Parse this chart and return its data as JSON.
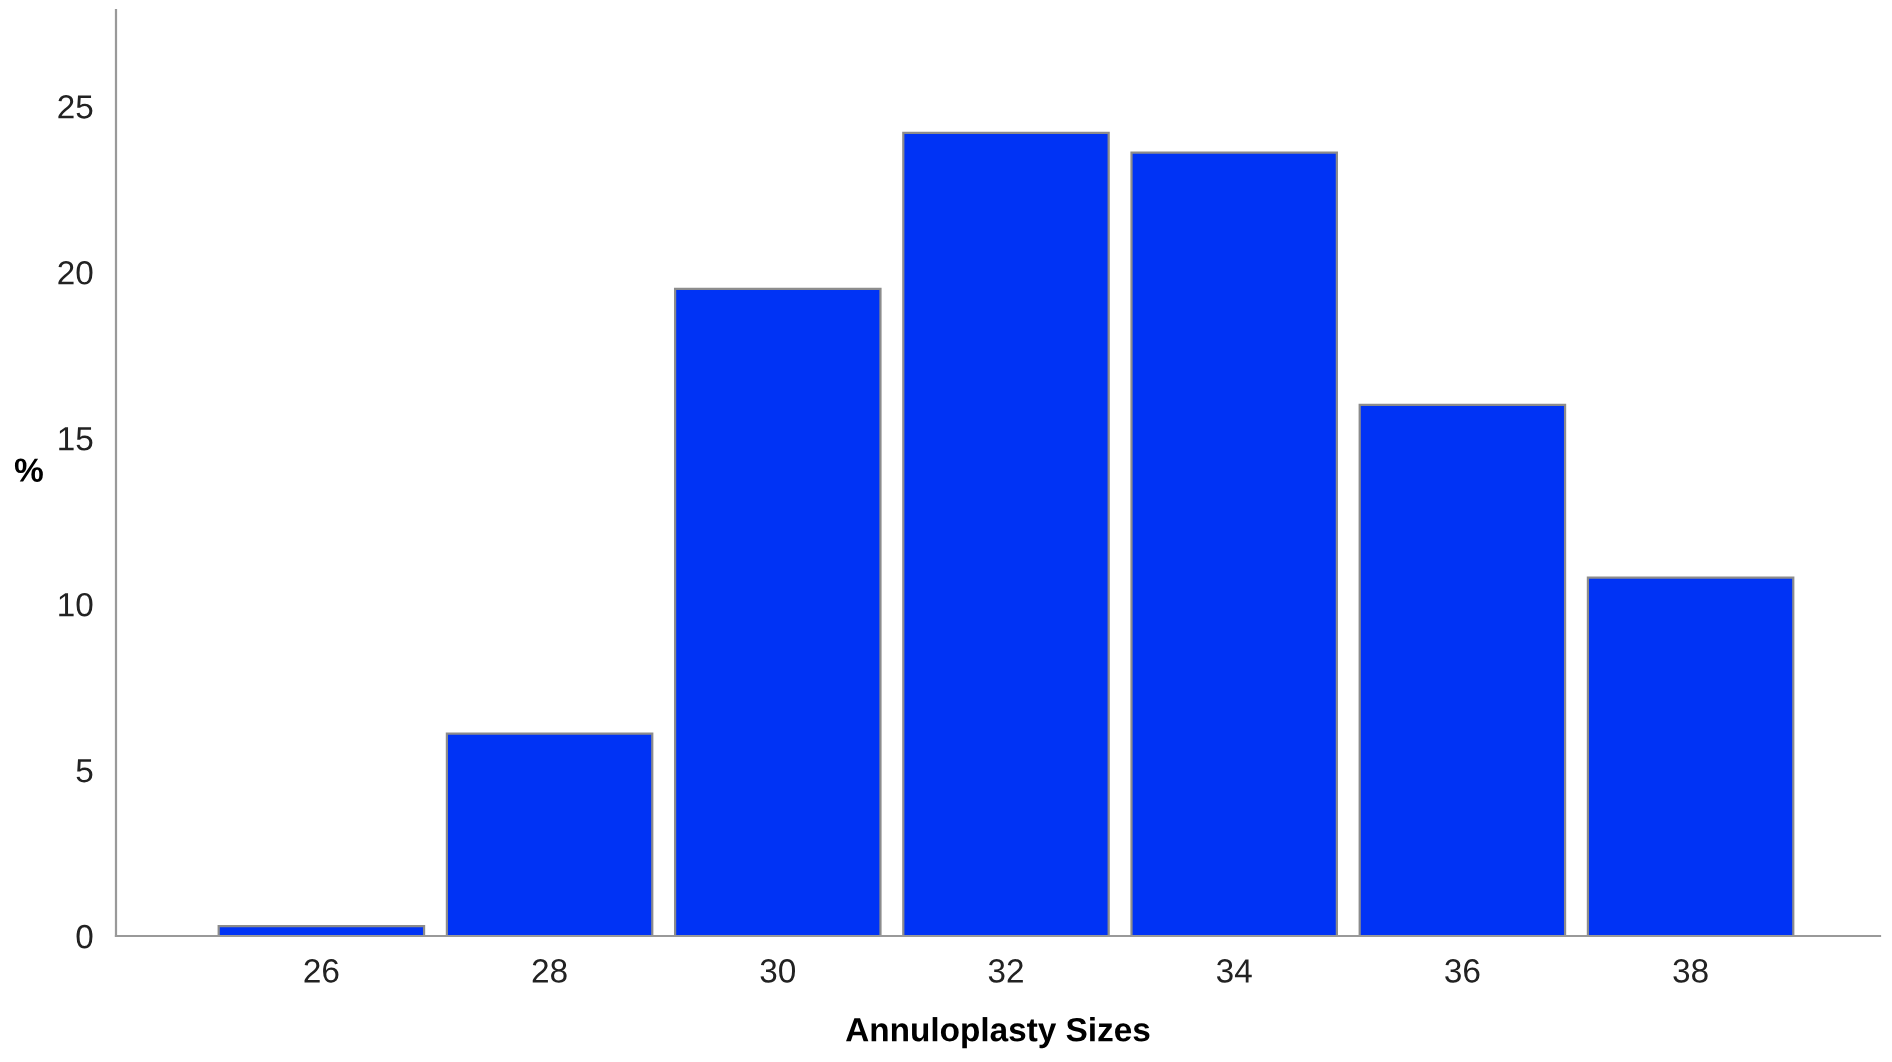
{
  "chart_data": {
    "type": "bar",
    "xlabel": "Annuloplasty Sizes",
    "ylabel": "%",
    "categories": [
      "26",
      "28",
      "30",
      "32",
      "34",
      "36",
      "38"
    ],
    "values": [
      0.3,
      6.1,
      19.5,
      24.2,
      23.6,
      16.0,
      10.8
    ],
    "color": "#0033f5",
    "ylim": [
      0,
      27.9
    ],
    "yticks": [
      0,
      5,
      10,
      15,
      20,
      25
    ],
    "grid": false
  }
}
